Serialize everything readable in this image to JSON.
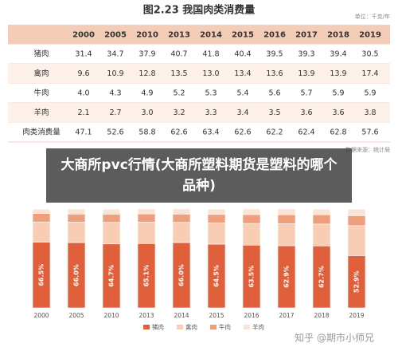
{
  "table": {
    "title": "图2.23 我国肉类消费量",
    "unit": "单位：千克/年",
    "columns": [
      "2000",
      "2005",
      "2010",
      "2013",
      "2014",
      "2015",
      "2016",
      "2017",
      "2018",
      "2019"
    ],
    "rows": [
      {
        "label": "猪肉",
        "values": [
          "31.4",
          "34.7",
          "37.9",
          "40.7",
          "41.8",
          "40.4",
          "39.5",
          "39.3",
          "39.4",
          "30.5"
        ]
      },
      {
        "label": "禽肉",
        "values": [
          "9.6",
          "10.9",
          "12.8",
          "13.5",
          "13.0",
          "13.4",
          "13.6",
          "13.9",
          "13.9",
          "17.4"
        ]
      },
      {
        "label": "牛肉",
        "values": [
          "4.0",
          "4.3",
          "4.9",
          "5.2",
          "5.3",
          "5.4",
          "5.6",
          "5.7",
          "5.9",
          "5.9"
        ]
      },
      {
        "label": "羊肉",
        "values": [
          "2.1",
          "2.7",
          "3.0",
          "3.2",
          "3.3",
          "3.4",
          "3.5",
          "3.6",
          "3.6",
          "3.8"
        ]
      },
      {
        "label": "肉类消费量",
        "values": [
          "47.1",
          "52.6",
          "58.8",
          "62.6",
          "63.4",
          "62.6",
          "62.2",
          "62.4",
          "62.8",
          "57.6"
        ]
      }
    ],
    "source": "数据来源：统计局"
  },
  "overlay_title": "大商所pvc行情(大商所塑料期货是塑料的哪个品种)",
  "watermark": "知乎 @期市小师兄",
  "chart_data": {
    "type": "stacked-bar",
    "categories": [
      "2000",
      "2005",
      "2010",
      "2013",
      "2014",
      "2015",
      "2016",
      "2017",
      "2018",
      "2019"
    ],
    "ylim": [
      0,
      100
    ],
    "series": [
      {
        "name": "猪肉",
        "color": "#e0603c",
        "values": [
          66.5,
          66.0,
          64.7,
          65.1,
          66.0,
          64.5,
          63.5,
          62.9,
          62.7,
          52.9
        ],
        "value_labels": [
          "66.5%",
          "66.0%",
          "64.7%",
          "65.1%",
          "66.0%",
          "64.5%",
          "63.5%",
          "62.9%",
          "62.7%",
          "52.9%"
        ]
      },
      {
        "name": "禽肉",
        "color": "#f8cdb4",
        "values": [
          20.4,
          20.7,
          21.8,
          21.6,
          20.5,
          21.4,
          21.9,
          22.3,
          22.1,
          30.2
        ]
      },
      {
        "name": "牛肉",
        "color": "#ef9f7c",
        "values": [
          8.5,
          8.2,
          8.3,
          8.3,
          8.4,
          8.6,
          9.0,
          9.1,
          9.4,
          10.2
        ]
      },
      {
        "name": "羊肉",
        "color": "#fbe3d6",
        "values": [
          4.5,
          5.1,
          5.1,
          5.1,
          5.2,
          5.4,
          5.6,
          5.8,
          5.7,
          6.6
        ]
      }
    ]
  }
}
